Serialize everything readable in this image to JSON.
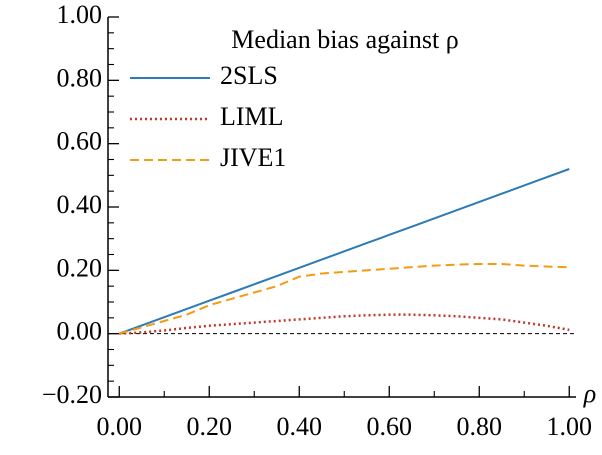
{
  "chart_data": {
    "type": "line",
    "legend_title": "Median bias against ρ",
    "x_label": "ρ",
    "x": [
      0,
      0.05,
      0.1,
      0.15,
      0.2,
      0.25,
      0.3,
      0.35,
      0.4,
      0.45,
      0.5,
      0.55,
      0.6,
      0.65,
      0.7,
      0.75,
      0.8,
      0.85,
      0.9,
      0.95,
      1.0
    ],
    "series": [
      {
        "name": "2SLS",
        "color": "#2c7bb6",
        "style": "solid",
        "values": [
          0,
          0.026,
          0.052,
          0.078,
          0.104,
          0.13,
          0.156,
          0.182,
          0.208,
          0.234,
          0.26,
          0.286,
          0.312,
          0.338,
          0.364,
          0.39,
          0.416,
          0.442,
          0.468,
          0.494,
          0.52
        ]
      },
      {
        "name": "LIML",
        "color": "#c0392b",
        "style": "dotted",
        "values": [
          0,
          0.004,
          0.01,
          0.018,
          0.025,
          0.03,
          0.035,
          0.04,
          0.045,
          0.05,
          0.055,
          0.058,
          0.06,
          0.06,
          0.058,
          0.055,
          0.05,
          0.045,
          0.035,
          0.025,
          0.012
        ]
      },
      {
        "name": "JIVE1",
        "color": "#f39c12",
        "style": "dashed",
        "values": [
          0,
          0.02,
          0.04,
          0.06,
          0.09,
          0.11,
          0.13,
          0.15,
          0.18,
          0.19,
          0.195,
          0.2,
          0.205,
          0.21,
          0.215,
          0.218,
          0.22,
          0.22,
          0.215,
          0.212,
          0.21
        ]
      }
    ],
    "xlim": [
      -0.025,
      1.015
    ],
    "ylim": [
      -0.2,
      1.0
    ],
    "xticks": [
      {
        "value": 0,
        "label": "0.00"
      },
      {
        "value": 0.2,
        "label": "0.20"
      },
      {
        "value": 0.4,
        "label": "0.40"
      },
      {
        "value": 0.6,
        "label": "0.60"
      },
      {
        "value": 0.8,
        "label": "0.80"
      },
      {
        "value": 1.0,
        "label": "1.00"
      }
    ],
    "xminor_ticks": [
      0.1,
      0.3,
      0.5,
      0.7,
      0.9
    ],
    "yticks": [
      {
        "value": -0.2,
        "label": "−0.20"
      },
      {
        "value": 0,
        "label": "0.00"
      },
      {
        "value": 0.2,
        "label": "0.20"
      },
      {
        "value": 0.4,
        "label": "0.40"
      },
      {
        "value": 0.6,
        "label": "0.60"
      },
      {
        "value": 0.8,
        "label": "0.80"
      },
      {
        "value": 1.0,
        "label": "1.00"
      }
    ],
    "yminor_ticks": [
      -0.15,
      -0.1,
      -0.05,
      0.05,
      0.1,
      0.15,
      0.25,
      0.3,
      0.35,
      0.45,
      0.5,
      0.55,
      0.65,
      0.7,
      0.75,
      0.85,
      0.9,
      0.95
    ],
    "hline": 0
  }
}
